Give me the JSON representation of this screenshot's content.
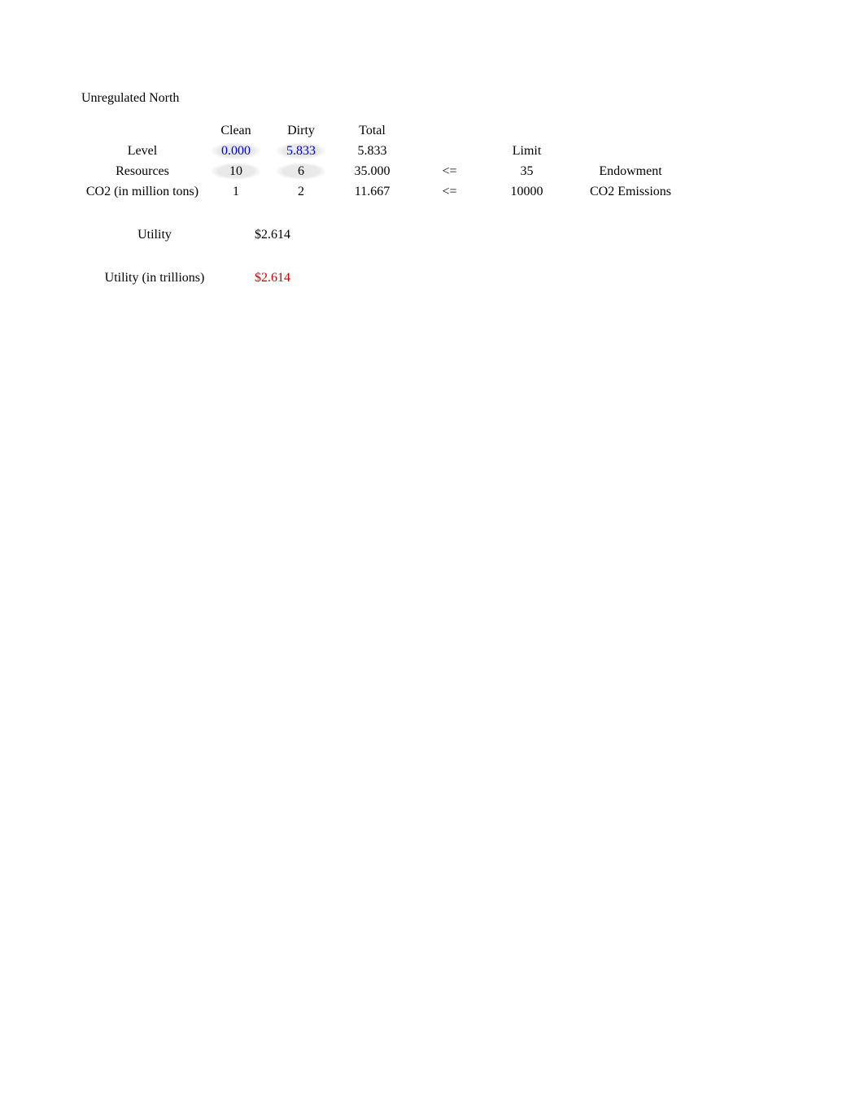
{
  "title": "Unregulated North",
  "columns": {
    "clean": "Clean",
    "dirty": "Dirty",
    "total": "Total",
    "limit": "Limit"
  },
  "rows": {
    "level": {
      "label": "Level",
      "clean": "0.000",
      "dirty": "5.833",
      "total": "5.833",
      "op": "",
      "limit": "",
      "right": ""
    },
    "resources": {
      "label": "Resources",
      "clean": "10",
      "dirty": "6",
      "total": "35.000",
      "op": "<=",
      "limit": "35",
      "right": "Endowment"
    },
    "co2": {
      "label": "CO2 (in million tons)",
      "clean": "1",
      "dirty": "2",
      "total": "11.667",
      "op": "<=",
      "limit": "10000",
      "right": "CO2 Emissions"
    }
  },
  "utility": {
    "label": "Utility",
    "value": "$2.614"
  },
  "utility_trillions": {
    "label": "Utility (in trillions)",
    "value": "$2.614"
  },
  "colors": {
    "text": "#000000",
    "blue": "#0000cc",
    "red": "#cc0000",
    "highlight_bg": "#e9e9e9",
    "page_bg": "#ffffff"
  },
  "typography": {
    "font_family": "Times New Roman",
    "font_size_pt": 12
  }
}
